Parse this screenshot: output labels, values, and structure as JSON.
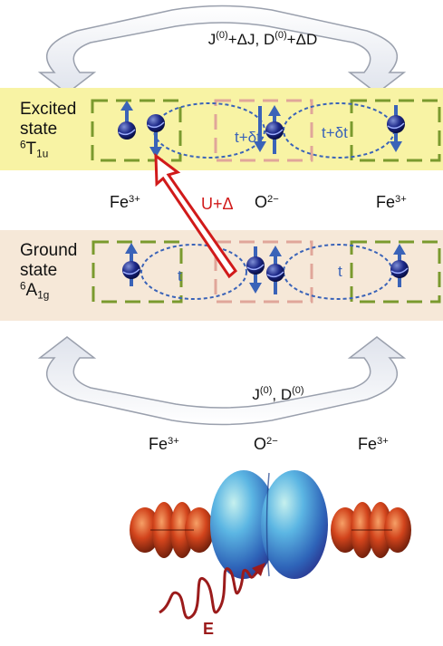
{
  "top_arrow": {
    "j_base": "J",
    "j_sup": "(0)",
    "j_delta": "+ΔJ, ",
    "d_base": "D",
    "d_sup": "(0)",
    "d_delta": "+ΔD"
  },
  "excited_state": {
    "line1": "Excited",
    "line2": "state",
    "symbol_sup": "6",
    "symbol_base": "T",
    "symbol_sub": "1u",
    "hop_label_1": "t+δt",
    "hop_label_2": "t+δt"
  },
  "ion_labels": {
    "fe_base": "Fe",
    "fe_sup": "3+",
    "o_base": "O",
    "o_sup": "2−"
  },
  "transition_label": "U+Δ",
  "ground_state": {
    "line1": "Ground",
    "line2": "state",
    "symbol_sup": "6",
    "symbol_base": "A",
    "symbol_sub": "1g",
    "hop_label_1": "t",
    "hop_label_2": "t"
  },
  "bottom_arrow": {
    "j_base": "J",
    "j_sup": "(0)",
    "sep": ", ",
    "d_base": "D",
    "d_sup": "(0)"
  },
  "orbitals": {
    "fe_left_base": "Fe",
    "fe_left_sup": "3+",
    "o_base": "O",
    "o_sup": "2−",
    "fe_right_base": "Fe",
    "fe_right_sup": "3+",
    "field_label": "E"
  },
  "colors": {
    "excited_band": "#f8f3a4",
    "ground_band": "#f6e8d8",
    "fe_box": "#7a9a2e",
    "o_box": "#e0a69a",
    "hopping": "#3a63b8",
    "transition": "#d11a1a",
    "fe_orbital": "#d2441c",
    "o_orbital": "#3d8fd6",
    "light_wave": "#9b1b1b"
  }
}
